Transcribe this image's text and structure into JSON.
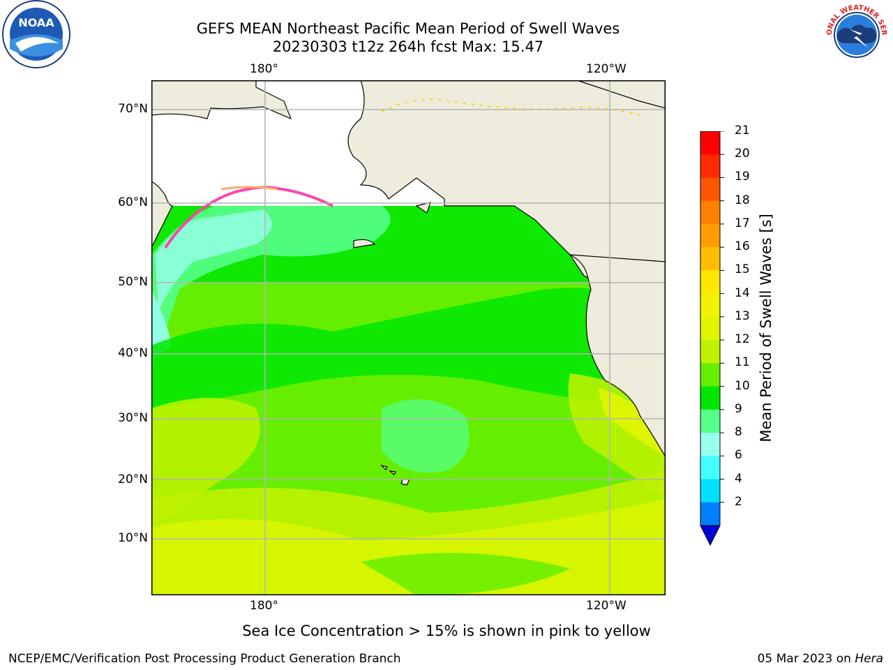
{
  "header": {
    "title_line1": "GEFS MEAN Northeast Pacific Mean Period of Swell Waves",
    "title_line2": "20230303 t12z 264h fcst   Max: 15.47"
  },
  "map": {
    "lon_labels_top": [
      "180°",
      "120°W"
    ],
    "lon_labels_bottom": [
      "180°",
      "120°W"
    ],
    "lat_labels": [
      "70°N",
      "60°N",
      "50°N",
      "40°N",
      "30°N",
      "20°N",
      "10°N"
    ],
    "colors": {
      "land": "#eeecdc",
      "grid": "#b4b4b4",
      "coast": "#000000"
    }
  },
  "colorbar": {
    "title": "Mean Period of Swell Waves [s]",
    "tick_labels": [
      "21",
      "20",
      "19",
      "18",
      "17",
      "16",
      "15",
      "14",
      "13",
      "12",
      "11",
      "10",
      "9",
      "8",
      "6",
      "4",
      "2"
    ],
    "colors_top_to_bottom": [
      "#ff0000",
      "#ff2a00",
      "#ff5500",
      "#ff7f00",
      "#ff9d00",
      "#ffbf00",
      "#ffe800",
      "#f2f200",
      "#e0f500",
      "#bff200",
      "#66ee00",
      "#00e600",
      "#55ff88",
      "#99ffee",
      "#44ffff",
      "#00e0ff",
      "#0080ff"
    ],
    "extend_color": "#0000dd"
  },
  "footer": {
    "note": "Sea Ice Concentration > 15% is shown in pink to yellow",
    "credit": "NCEP/EMC/Verification Post Processing Product Generation Branch",
    "date": "05 Mar 2023 on",
    "host": "Hera"
  },
  "logos": {
    "left": "NOAA",
    "right": "NATIONAL WEATHER SERVICE"
  }
}
